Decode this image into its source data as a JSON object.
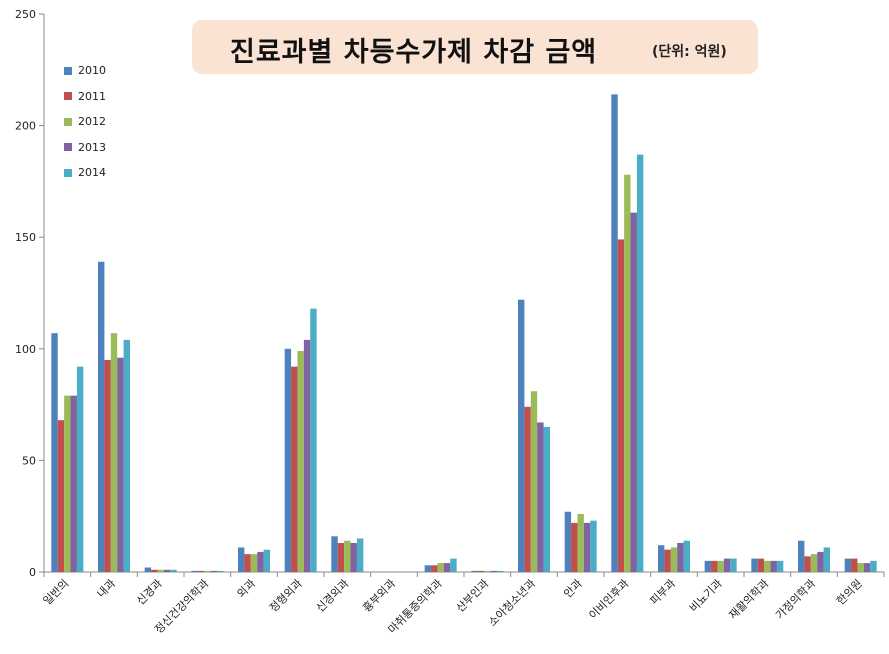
{
  "chart_data": {
    "type": "bar",
    "title": "진료과별 차등수가제 차감 금액",
    "unit_label": "(단위: 억원)",
    "xlabel": "",
    "ylabel": "",
    "ylim": [
      0,
      250
    ],
    "yticks": [
      0,
      50,
      100,
      150,
      200,
      250
    ],
    "grid": false,
    "legend_position": "top-left",
    "categories": [
      "일반의",
      "내과",
      "신경과",
      "정신건강의학과",
      "외과",
      "정형외과",
      "신경외과",
      "흉부외과",
      "마취통증의학과",
      "산부인과",
      "소아청소년과",
      "안과",
      "이비인후과",
      "피부과",
      "비뇨기과",
      "재활의학과",
      "가정의학과",
      "한의원"
    ],
    "series": [
      {
        "name": "2010",
        "color": "#4f81bd",
        "values": [
          107,
          139,
          2,
          0.5,
          11,
          100,
          16,
          0,
          3,
          0.5,
          122,
          27,
          214,
          12,
          5,
          6,
          14,
          6
        ]
      },
      {
        "name": "2011",
        "color": "#c0504d",
        "values": [
          68,
          95,
          1,
          0.5,
          8,
          92,
          13,
          0,
          3,
          0.5,
          74,
          22,
          149,
          10,
          5,
          6,
          7,
          6
        ]
      },
      {
        "name": "2012",
        "color": "#9bbb59",
        "values": [
          79,
          107,
          1,
          0.5,
          8,
          99,
          14,
          0,
          4,
          0.5,
          81,
          26,
          178,
          11,
          5,
          5,
          8,
          4
        ]
      },
      {
        "name": "2013",
        "color": "#8064a2",
        "values": [
          79,
          96,
          1,
          0.5,
          9,
          104,
          13,
          0,
          4,
          0.5,
          67,
          22,
          161,
          13,
          6,
          5,
          9,
          4
        ]
      },
      {
        "name": "2014",
        "color": "#4bacc6",
        "values": [
          92,
          104,
          1,
          0.5,
          10,
          118,
          15,
          0,
          6,
          0.5,
          65,
          23,
          187,
          14,
          6,
          5,
          11,
          5
        ]
      }
    ]
  }
}
